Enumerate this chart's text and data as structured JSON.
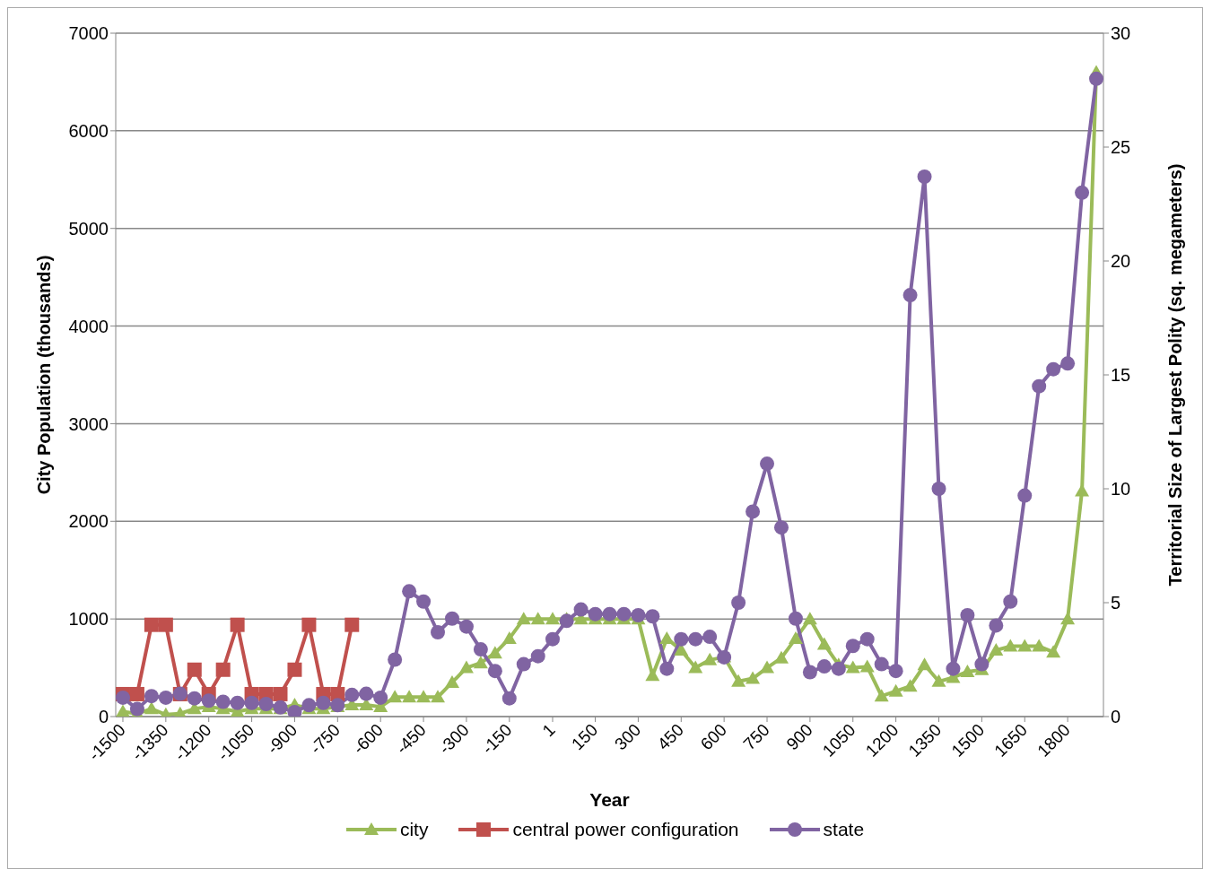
{
  "chart_data": {
    "type": "line",
    "xlabel": "Year",
    "ylabel": "City Population (thousands)",
    "y2label": "Territorial Size of Largest Polity (sq. megameters)",
    "x": [
      -1500,
      -1450,
      -1400,
      -1350,
      -1300,
      -1250,
      -1200,
      -1150,
      -1100,
      -1050,
      -1000,
      -950,
      -900,
      -850,
      -800,
      -750,
      -700,
      -650,
      -600,
      -550,
      -500,
      -450,
      -400,
      -350,
      -300,
      -250,
      -200,
      -150,
      -100,
      -50,
      1,
      50,
      100,
      150,
      200,
      250,
      300,
      350,
      400,
      450,
      500,
      550,
      600,
      650,
      700,
      750,
      800,
      850,
      900,
      950,
      1000,
      1050,
      1100,
      1150,
      1200,
      1250,
      1300,
      1350,
      1400,
      1450,
      1500,
      1550,
      1600,
      1650,
      1700,
      1750,
      1800,
      1850,
      1900
    ],
    "xlim": [
      -1525,
      1925
    ],
    "xticks": [
      -1500,
      -1350,
      -1200,
      -1050,
      -900,
      -750,
      -600,
      -450,
      -300,
      -150,
      1,
      150,
      300,
      450,
      600,
      750,
      900,
      1050,
      1200,
      1350,
      1500,
      1650,
      1800
    ],
    "ylim": [
      0,
      7000
    ],
    "yticks": [
      0,
      1000,
      2000,
      3000,
      4000,
      5000,
      6000,
      7000
    ],
    "y2lim": [
      0,
      30
    ],
    "y2ticks": [
      0,
      5,
      10,
      15,
      20,
      25,
      30
    ],
    "grid": "y",
    "legend": "bottom",
    "series": [
      {
        "name": "city",
        "color": "#9bbb59",
        "marker": "triangle",
        "values": [
          50,
          30,
          80,
          20,
          30,
          80,
          100,
          80,
          50,
          80,
          80,
          80,
          120,
          80,
          80,
          100,
          120,
          120,
          100,
          200,
          200,
          200,
          200,
          350,
          500,
          550,
          650,
          800,
          1000,
          1000,
          1000,
          1000,
          1000,
          1000,
          1000,
          1000,
          1000,
          420,
          800,
          680,
          500,
          580,
          610,
          360,
          390,
          500,
          600,
          800,
          1000,
          740,
          530,
          500,
          510,
          210,
          260,
          310,
          530,
          360,
          400,
          460,
          480,
          680,
          720,
          720,
          720,
          660,
          1000,
          2310,
          6600
        ]
      },
      {
        "name": "central power configuration",
        "color": "#c0504d",
        "marker": "square",
        "values": [
          230,
          230,
          940,
          940,
          230,
          480,
          230,
          480,
          940,
          230,
          230,
          230,
          480,
          940,
          230,
          230,
          940,
          null,
          null,
          null,
          null,
          null,
          null,
          null,
          null,
          null,
          null,
          null,
          null,
          null,
          null,
          null,
          null,
          null,
          null,
          null,
          null,
          null,
          null,
          null,
          null,
          null,
          null,
          null,
          null,
          null,
          null,
          null,
          null,
          null,
          null,
          null,
          null,
          null,
          null,
          null,
          null,
          null,
          null,
          null,
          null,
          null,
          null,
          null,
          null,
          null,
          null,
          null,
          null
        ]
      },
      {
        "name": "state",
        "color": "#8064a2",
        "marker": "circle",
        "axis": "y2",
        "values": [
          0.83,
          0.33,
          0.9,
          0.83,
          1.0,
          0.8,
          0.7,
          0.65,
          0.6,
          0.6,
          0.55,
          0.4,
          0.2,
          0.5,
          0.6,
          0.5,
          0.95,
          1.0,
          0.83,
          2.5,
          5.5,
          5.05,
          3.7,
          4.3,
          3.95,
          2.95,
          2.0,
          0.8,
          2.3,
          2.65,
          3.4,
          4.2,
          4.7,
          4.5,
          4.5,
          4.5,
          4.45,
          4.4,
          2.1,
          3.4,
          3.4,
          3.5,
          2.6,
          5.0,
          9.0,
          11.1,
          8.3,
          4.3,
          1.95,
          2.2,
          2.1,
          3.1,
          3.4,
          2.3,
          2.0,
          18.5,
          23.7,
          10.0,
          2.1,
          4.45,
          2.3,
          4.0,
          5.05,
          9.7,
          14.5,
          15.25,
          15.5,
          23.0,
          28.0
        ]
      }
    ]
  }
}
